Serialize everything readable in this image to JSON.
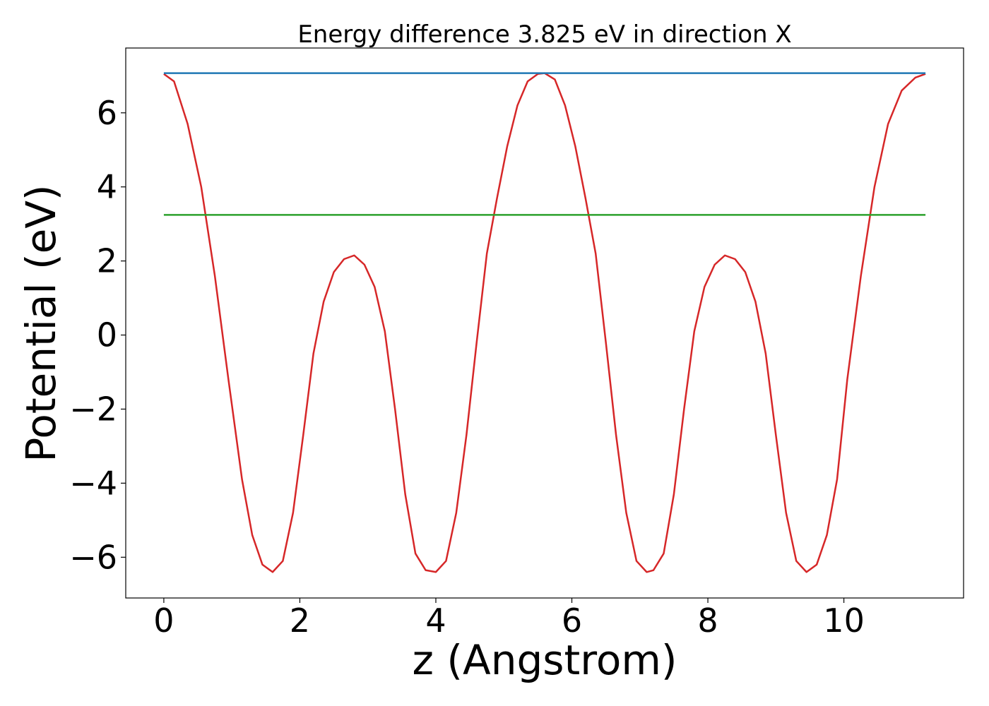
{
  "chart_data": {
    "type": "line",
    "title": "Energy difference 3.825 eV in direction X",
    "xlabel": "z (Angstrom)",
    "ylabel": "Potential (eV)",
    "xlim": [
      -0.56,
      11.76
    ],
    "ylim": [
      -7.1,
      7.75
    ],
    "x_ticks": [
      0,
      2,
      4,
      6,
      8,
      10
    ],
    "y_ticks": [
      -6,
      -4,
      -2,
      0,
      2,
      4,
      6
    ],
    "x_tick_labels": [
      "0",
      "2",
      "4",
      "6",
      "8",
      "10"
    ],
    "y_tick_labels": [
      "−6",
      "−4",
      "−2",
      "0",
      "2",
      "4",
      "6"
    ],
    "grid": false,
    "legend": "none",
    "series": [
      {
        "color": "#d62728",
        "x": [
          0,
          0.15,
          0.35,
          0.55,
          0.75,
          0.95,
          1.15,
          1.3,
          1.45,
          1.6,
          1.75,
          1.9,
          2.05,
          2.2,
          2.35,
          2.5,
          2.65,
          2.8,
          2.95,
          3.1,
          3.25,
          3.4,
          3.55,
          3.7,
          3.85,
          4.0,
          4.15,
          4.3,
          4.45,
          4.6,
          4.75,
          4.9,
          5.05,
          5.2,
          5.35,
          5.5,
          5.6,
          5.75,
          5.9,
          6.05,
          6.2,
          6.35,
          6.5,
          6.65,
          6.8,
          6.95,
          7.1,
          7.2,
          7.35,
          7.5,
          7.65,
          7.8,
          7.95,
          8.1,
          8.25,
          8.4,
          8.55,
          8.7,
          8.85,
          9.0,
          9.15,
          9.3,
          9.45,
          9.6,
          9.75,
          9.9,
          10.05,
          10.25,
          10.45,
          10.65,
          10.85,
          11.05,
          11.2
        ],
        "y": [
          7.05,
          6.85,
          5.7,
          4.0,
          1.6,
          -1.2,
          -3.9,
          -5.4,
          -6.2,
          -6.4,
          -6.1,
          -4.8,
          -2.7,
          -0.5,
          0.9,
          1.7,
          2.05,
          2.15,
          1.9,
          1.3,
          0.1,
          -2.0,
          -4.3,
          -5.9,
          -6.35,
          -6.4,
          -6.1,
          -4.8,
          -2.7,
          -0.2,
          2.2,
          3.7,
          5.1,
          6.2,
          6.85,
          7.05,
          7.07,
          6.9,
          6.2,
          5.1,
          3.7,
          2.2,
          -0.2,
          -2.7,
          -4.8,
          -6.1,
          -6.4,
          -6.35,
          -5.9,
          -4.3,
          -2.0,
          0.1,
          1.3,
          1.9,
          2.15,
          2.05,
          1.7,
          0.9,
          -0.5,
          -2.7,
          -4.8,
          -6.1,
          -6.4,
          -6.2,
          -5.4,
          -3.9,
          -1.2,
          1.6,
          4.0,
          5.7,
          6.6,
          6.95,
          7.05
        ]
      },
      {
        "color": "#1f77b4",
        "x": [
          0,
          11.2
        ],
        "y": [
          7.07,
          7.07
        ]
      },
      {
        "color": "#2ca02c",
        "x": [
          0,
          11.2
        ],
        "y": [
          3.245,
          3.245
        ]
      }
    ]
  }
}
